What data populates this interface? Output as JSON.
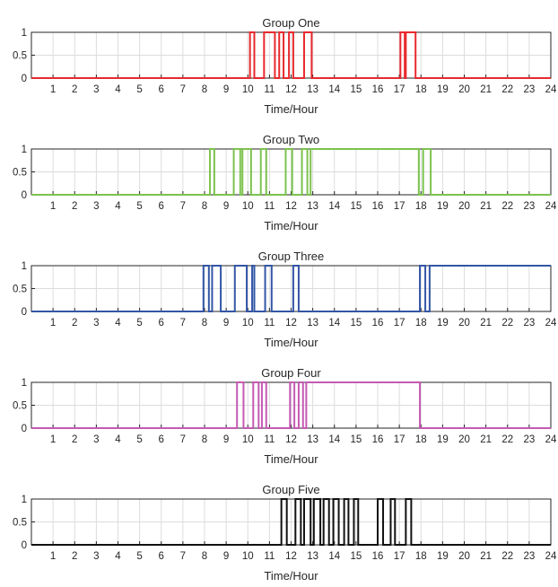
{
  "chart_data": [
    {
      "type": "line",
      "title": "Group One",
      "xlabel": "Time/Hour",
      "ylabel": "",
      "xlim": [
        0,
        24
      ],
      "ylim": [
        0,
        1
      ],
      "x_ticks": [
        "1",
        "2",
        "3",
        "4",
        "5",
        "6",
        "7",
        "8",
        "9",
        "10",
        "11",
        "12",
        "13",
        "14",
        "15",
        "16",
        "17",
        "18",
        "19",
        "20",
        "21",
        "22",
        "23",
        "24"
      ],
      "y_ticks": [
        "0",
        "0.5",
        "1"
      ],
      "grid": true,
      "color": "#e8292d",
      "series": [
        {
          "x": [
            0,
            10.1,
            10.1,
            10.3,
            10.3,
            10.75,
            10.75,
            11.25,
            11.25,
            11.45,
            11.45,
            11.65,
            11.65,
            11.9,
            11.9,
            12.1,
            12.1,
            12.6,
            12.6,
            12.95,
            12.95,
            17.05,
            17.05,
            17.25,
            17.25,
            17.3,
            17.3,
            17.75,
            17.75,
            24
          ],
          "y": [
            0,
            0,
            1,
            1,
            0,
            0,
            1,
            1,
            0,
            0,
            1,
            1,
            0,
            0,
            1,
            1,
            0,
            0,
            1,
            1,
            0,
            0,
            1,
            1,
            0,
            0,
            1,
            1,
            0,
            0
          ]
        }
      ]
    },
    {
      "type": "line",
      "title": "Group Two",
      "xlabel": "Time/Hour",
      "ylabel": "",
      "xlim": [
        0,
        24
      ],
      "ylim": [
        0,
        1
      ],
      "x_ticks": [
        "1",
        "2",
        "3",
        "4",
        "5",
        "6",
        "7",
        "8",
        "9",
        "10",
        "11",
        "12",
        "13",
        "14",
        "15",
        "16",
        "17",
        "18",
        "19",
        "20",
        "21",
        "22",
        "23",
        "24"
      ],
      "y_ticks": [
        "0",
        "0.5",
        "1"
      ],
      "grid": true,
      "color": "#7cc24e",
      "series": [
        {
          "x": [
            0,
            8.25,
            8.25,
            8.45,
            8.45,
            9.35,
            9.35,
            9.65,
            9.65,
            9.75,
            9.75,
            10.15,
            10.15,
            10.6,
            10.6,
            10.85,
            10.85,
            11.75,
            11.75,
            12.05,
            12.05,
            12.5,
            12.5,
            12.75,
            12.75,
            12.9,
            12.9,
            17.9,
            17.9,
            18.1,
            18.1,
            18.45,
            18.45,
            24
          ],
          "y": [
            0,
            0,
            1,
            1,
            0,
            0,
            1,
            1,
            0,
            0,
            1,
            1,
            0,
            0,
            1,
            1,
            0,
            0,
            1,
            1,
            0,
            0,
            1,
            1,
            0,
            0,
            1,
            1,
            0,
            0,
            1,
            1,
            0,
            0
          ]
        }
      ]
    },
    {
      "type": "line",
      "title": "Group Three",
      "xlabel": "Time/Hour",
      "ylabel": "",
      "xlim": [
        0,
        24
      ],
      "ylim": [
        0,
        1
      ],
      "x_ticks": [
        "1",
        "2",
        "3",
        "4",
        "5",
        "6",
        "7",
        "8",
        "9",
        "10",
        "11",
        "12",
        "13",
        "14",
        "15",
        "16",
        "17",
        "18",
        "19",
        "20",
        "21",
        "22",
        "23",
        "24"
      ],
      "y_ticks": [
        "0",
        "0.5",
        "1"
      ],
      "grid": true,
      "color": "#3356a6",
      "series": [
        {
          "x": [
            0,
            7.95,
            7.95,
            8.2,
            8.2,
            8.35,
            8.35,
            8.75,
            8.75,
            9.4,
            9.4,
            9.95,
            9.95,
            10.2,
            10.2,
            10.3,
            10.3,
            10.8,
            10.8,
            11.1,
            11.1,
            12.1,
            12.1,
            12.35,
            12.35,
            17.95,
            17.95,
            18.2,
            18.2,
            18.4,
            18.4,
            24
          ],
          "y": [
            0,
            0,
            1,
            1,
            0,
            0,
            1,
            1,
            0,
            0,
            1,
            1,
            0,
            0,
            1,
            1,
            0,
            0,
            1,
            1,
            0,
            0,
            1,
            1,
            0,
            0,
            1,
            1,
            0,
            0,
            1,
            1
          ]
        }
      ]
    },
    {
      "type": "line",
      "title": "Group Four",
      "xlabel": "Time/Hour",
      "ylabel": "",
      "xlim": [
        0,
        24
      ],
      "ylim": [
        0,
        1
      ],
      "x_ticks": [
        "1",
        "2",
        "3",
        "4",
        "5",
        "6",
        "7",
        "8",
        "9",
        "10",
        "11",
        "12",
        "13",
        "14",
        "15",
        "16",
        "17",
        "18",
        "19",
        "20",
        "21",
        "22",
        "23",
        "24"
      ],
      "y_ticks": [
        "0",
        "0.5",
        "1"
      ],
      "grid": true,
      "color": "#c45ab3",
      "series": [
        {
          "x": [
            0,
            9.5,
            9.5,
            9.8,
            9.8,
            10.25,
            10.25,
            10.5,
            10.5,
            10.65,
            10.65,
            10.85,
            10.85,
            11.95,
            11.95,
            12.15,
            12.15,
            12.35,
            12.35,
            12.55,
            12.55,
            12.7,
            12.7,
            17.95,
            17.95,
            24
          ],
          "y": [
            0,
            0,
            1,
            1,
            0,
            0,
            1,
            1,
            0,
            0,
            1,
            1,
            0,
            0,
            1,
            1,
            0,
            0,
            1,
            1,
            0,
            0,
            1,
            1,
            0,
            0
          ]
        }
      ]
    },
    {
      "type": "line",
      "title": "Group Five",
      "xlabel": "Time/Hour",
      "ylabel": "",
      "xlim": [
        0,
        24
      ],
      "ylim": [
        0,
        1
      ],
      "x_ticks": [
        "1",
        "2",
        "3",
        "4",
        "5",
        "6",
        "7",
        "8",
        "9",
        "10",
        "11",
        "12",
        "13",
        "14",
        "15",
        "16",
        "17",
        "18",
        "19",
        "20",
        "21",
        "22",
        "23",
        "24"
      ],
      "y_ticks": [
        "0",
        "0.5",
        "1"
      ],
      "grid": true,
      "color": "#111111",
      "series": [
        {
          "x": [
            0,
            11.55,
            11.55,
            11.8,
            11.8,
            12.2,
            12.2,
            12.45,
            12.45,
            12.6,
            12.6,
            12.9,
            12.9,
            13.05,
            13.05,
            13.35,
            13.35,
            13.5,
            13.5,
            13.75,
            13.75,
            13.95,
            13.95,
            14.2,
            14.2,
            14.45,
            14.45,
            14.65,
            14.65,
            14.9,
            14.9,
            15.1,
            15.1,
            16.0,
            16.0,
            16.25,
            16.25,
            16.6,
            16.6,
            16.8,
            16.8,
            17.3,
            17.3,
            17.55,
            17.55,
            24
          ],
          "y": [
            0,
            0,
            1,
            1,
            0,
            0,
            1,
            1,
            0,
            0,
            1,
            1,
            0,
            0,
            1,
            1,
            0,
            0,
            1,
            1,
            0,
            0,
            1,
            1,
            0,
            0,
            1,
            1,
            0,
            0,
            1,
            1,
            0,
            0,
            1,
            1,
            0,
            0,
            1,
            1,
            0,
            0,
            1,
            1,
            0,
            0
          ]
        }
      ]
    }
  ]
}
